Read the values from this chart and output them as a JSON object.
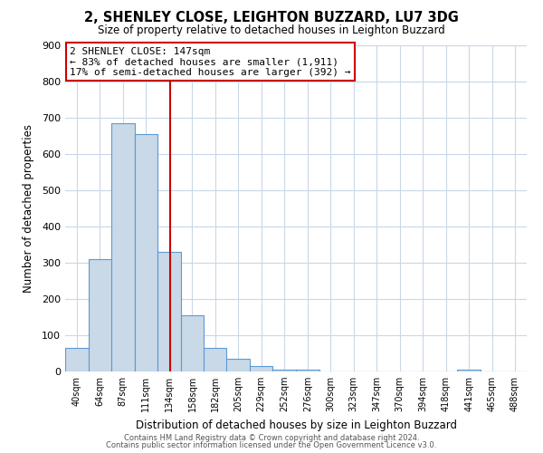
{
  "title": "2, SHENLEY CLOSE, LEIGHTON BUZZARD, LU7 3DG",
  "subtitle": "Size of property relative to detached houses in Leighton Buzzard",
  "xlabel": "Distribution of detached houses by size in Leighton Buzzard",
  "ylabel": "Number of detached properties",
  "bar_edges": [
    40,
    64,
    87,
    111,
    134,
    158,
    182,
    205,
    229,
    252,
    276,
    300,
    323,
    347,
    370,
    394,
    418,
    441,
    465,
    488,
    512
  ],
  "bar_heights": [
    65,
    310,
    685,
    655,
    330,
    155,
    65,
    35,
    15,
    5,
    5,
    0,
    0,
    0,
    0,
    0,
    0,
    5,
    0,
    0
  ],
  "bar_color": "#c9d9e8",
  "bar_edge_color": "#5b9bd5",
  "highlight_x": 147,
  "annotation_title": "2 SHENLEY CLOSE: 147sqm",
  "annotation_line1": "← 83% of detached houses are smaller (1,911)",
  "annotation_line2": "17% of semi-detached houses are larger (392) →",
  "vline_color": "#cc0000",
  "annotation_box_color": "#cc0000",
  "ylim": [
    0,
    900
  ],
  "yticks": [
    0,
    100,
    200,
    300,
    400,
    500,
    600,
    700,
    800,
    900
  ],
  "xlim": [
    40,
    512
  ],
  "footer1": "Contains HM Land Registry data © Crown copyright and database right 2024.",
  "footer2": "Contains public sector information licensed under the Open Government Licence v3.0.",
  "bg_color": "#ffffff",
  "grid_color": "#c8d8e8"
}
